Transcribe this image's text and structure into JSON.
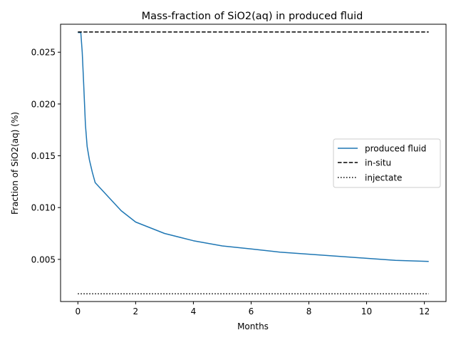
{
  "chart_data": {
    "type": "line",
    "title": "Mass-fraction of SiO2(aq) in produced fluid",
    "xlabel": "Months",
    "ylabel": "Fraction of SiO2(aq) (%)",
    "xlim": [
      -0.6,
      12.75
    ],
    "ylim": [
      0.00093,
      0.0277
    ],
    "xticks": [
      0,
      2,
      4,
      6,
      8,
      10,
      12
    ],
    "xtick_labels": [
      "0",
      "2",
      "4",
      "6",
      "8",
      "10",
      "12"
    ],
    "yticks": [
      0.005,
      0.01,
      0.015,
      0.02,
      0.025
    ],
    "ytick_labels": [
      "0.005",
      "0.010",
      "0.015",
      "0.020",
      "0.025"
    ],
    "grid": false,
    "legend_placement": "center-right",
    "series": [
      {
        "name": "produced fluid",
        "color": "#1f77b4",
        "style": "solid",
        "x": [
          0,
          0.1,
          0.15,
          0.2,
          0.22,
          0.26,
          0.32,
          0.4,
          0.5,
          0.6,
          0.8,
          1.0,
          1.5,
          2.0,
          3.0,
          4.0,
          5.0,
          6.0,
          7.0,
          8.0,
          9.0,
          10.0,
          11.0,
          12.15
        ],
        "y": [
          0.0269,
          0.0269,
          0.025,
          0.022,
          0.0207,
          0.018,
          0.0159,
          0.0146,
          0.0134,
          0.0124,
          0.0118,
          0.0112,
          0.0097,
          0.0086,
          0.0075,
          0.0068,
          0.0063,
          0.006,
          0.0057,
          0.0055,
          0.0053,
          0.0051,
          0.0049,
          0.0048
        ]
      },
      {
        "name": "in-situ",
        "color": "#000000",
        "style": "dashed",
        "x": [
          0,
          12.15
        ],
        "y": [
          0.02695,
          0.02695
        ]
      },
      {
        "name": "injectate",
        "color": "#000000",
        "style": "dotted",
        "x": [
          0,
          12.15
        ],
        "y": [
          0.00168,
          0.00168
        ]
      }
    ]
  }
}
